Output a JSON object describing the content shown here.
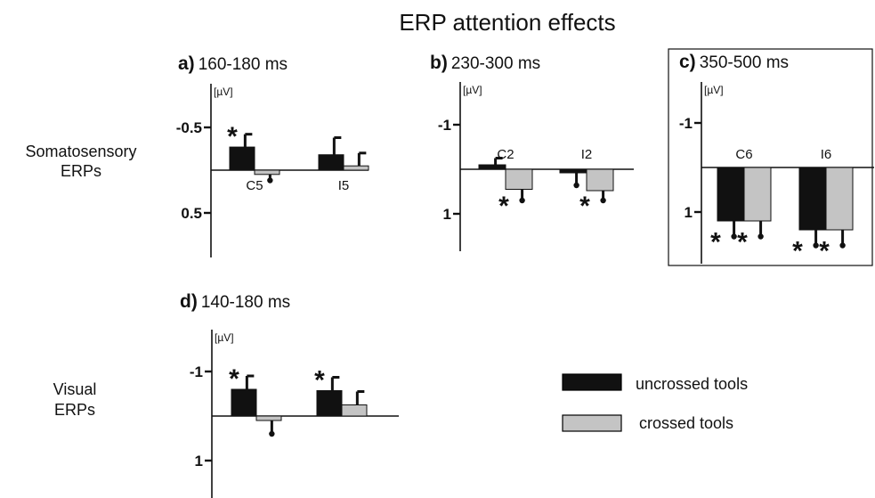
{
  "figure_title": "ERP attention effects",
  "row_labels": [
    [
      "Somatosensory",
      "ERPs"
    ],
    [
      "Visual",
      "ERPs"
    ]
  ],
  "legend": {
    "entries": [
      {
        "label": "uncrossed tools",
        "color": "#111111"
      },
      {
        "label": "crossed tools",
        "color": "#c4c4c4"
      }
    ]
  },
  "colors": {
    "uncrossed": "#111111",
    "crossed": "#c4c4c4"
  },
  "chart_data": [
    {
      "type": "bar",
      "panel": "a)",
      "title": "160-180 ms",
      "unit_label": "[µV]",
      "y_axis": "inverted (negative up)",
      "yticks": [
        "-0.5",
        "0.5"
      ],
      "ytick_values": [
        -0.5,
        0.5
      ],
      "ylim": [
        -1.1,
        1.0
      ],
      "groups": [
        {
          "label": "C5",
          "uncrossed": -0.27,
          "crossed": 0.05,
          "unc_err": 0.15,
          "cr_err": 0.07,
          "stars": [
            "uncrossed"
          ]
        },
        {
          "label": "I5",
          "uncrossed": -0.18,
          "crossed": -0.05,
          "unc_err": 0.2,
          "cr_err": 0.15,
          "stars": []
        }
      ]
    },
    {
      "type": "bar",
      "panel": "b)",
      "title": "230-300 ms",
      "unit_label": "[µV]",
      "y_axis": "inverted (negative up)",
      "yticks": [
        "-1",
        "1"
      ],
      "ytick_values": [
        -1,
        1
      ],
      "ylim": [
        -2.0,
        1.6
      ],
      "groups": [
        {
          "label": "C2",
          "uncrossed": -0.1,
          "crossed": 0.45,
          "unc_err": 0.15,
          "cr_err": 0.25,
          "stars": [
            "crossed"
          ]
        },
        {
          "label": "I2",
          "uncrossed": 0.08,
          "crossed": 0.48,
          "unc_err": 0.28,
          "cr_err": 0.22,
          "stars": [
            "crossed"
          ]
        }
      ]
    },
    {
      "type": "bar",
      "panel": "c)",
      "title": "350-500 ms",
      "unit_label": "[µV]",
      "y_axis": "inverted (negative up)",
      "yticks": [
        "-1",
        "1"
      ],
      "ytick_values": [
        -1,
        1
      ],
      "ylim": [
        -2.0,
        2.2
      ],
      "groups": [
        {
          "label": "C6",
          "uncrossed": 1.2,
          "crossed": 1.2,
          "unc_err": 0.35,
          "cr_err": 0.35,
          "stars": [
            "uncrossed",
            "crossed"
          ]
        },
        {
          "label": "I6",
          "uncrossed": 1.4,
          "crossed": 1.4,
          "unc_err": 0.35,
          "cr_err": 0.35,
          "stars": [
            "uncrossed",
            "crossed"
          ]
        }
      ]
    },
    {
      "type": "bar",
      "panel": "d)",
      "title": "140-180 ms",
      "unit_label": "[µV]",
      "y_axis": "inverted (negative up)",
      "yticks": [
        "-1",
        "1"
      ],
      "ytick_values": [
        -1,
        1
      ],
      "ylim": [
        -2.0,
        1.8
      ],
      "groups": [
        {
          "label": "",
          "uncrossed": -0.6,
          "crossed": 0.1,
          "unc_err": 0.3,
          "cr_err": 0.3,
          "stars": [
            "uncrossed"
          ]
        },
        {
          "label": "",
          "uncrossed": -0.57,
          "crossed": -0.25,
          "unc_err": 0.3,
          "cr_err": 0.3,
          "stars": [
            "uncrossed"
          ]
        }
      ]
    }
  ]
}
